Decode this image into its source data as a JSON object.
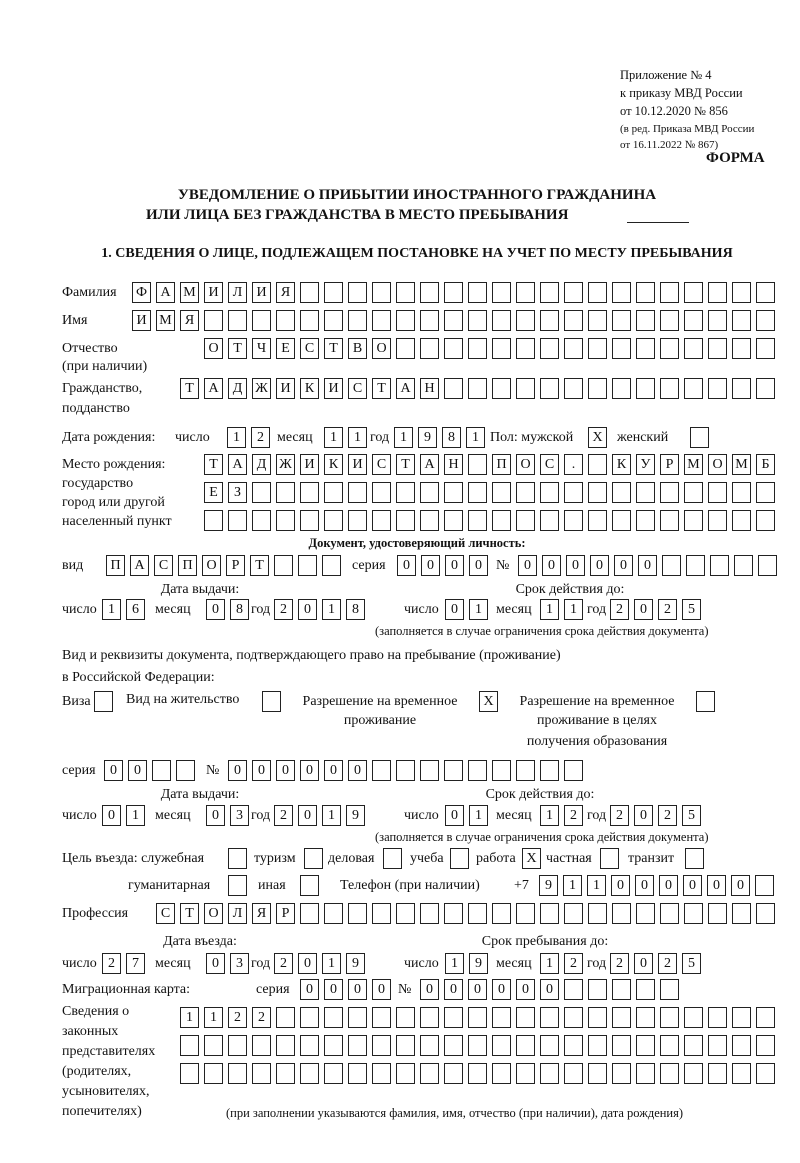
{
  "header": {
    "appendix": "Приложение № 4",
    "order_ref": "к приказу МВД России",
    "order_date": "от 10.12.2020 № 856",
    "edition_1": "(в ред. Приказа МВД России",
    "edition_2": "от 16.11.2022 № 867)",
    "form_label": "ФОРМА",
    "title_1": "УВЕДОМЛЕНИЕ О ПРИБЫТИИ ИНОСТРАННОГО ГРАЖДАНИНА",
    "title_2": "ИЛИ ЛИЦА БЕЗ ГРАЖДАНСТВА В МЕСТО ПРЕБЫВАНИЯ",
    "section_1": "1. СВЕДЕНИЯ О ЛИЦЕ, ПОДЛЕЖАЩЕМ ПОСТАНОВКЕ НА УЧЕТ ПО МЕСТУ ПРЕБЫВАНИЯ"
  },
  "person": {
    "surname_label": "Фамилия",
    "surname": "ФАМИЛИЯ",
    "name_label": "Имя",
    "name": "ИМЯ",
    "patronymic_label": "Отчество",
    "patronymic_note": "(при наличии)",
    "patronymic": "ОТЧЕСТВО",
    "citizenship_label": "Гражданство,",
    "citizenship_label_2": "подданство",
    "citizenship": "ТАДЖИКИСТАН",
    "birth_label": "Дата рождения:",
    "day_label": "число",
    "month_label": "месяц",
    "year_label": "год",
    "birth_day": "12",
    "birth_month": "11",
    "birth_year": "1981",
    "sex_label": "Пол: мужской",
    "female_label": "женский",
    "male_mark": "X",
    "female_mark": "",
    "birthplace_label_1": "Место рождения:",
    "birthplace_label_2": "государство",
    "birthplace_label_3": "город или другой",
    "birthplace_label_4": "населенный пункт",
    "birthplace_1": "ТАДЖИКИСТАН ПОС. КУРМОМБ",
    "birthplace_2": "ЕЗ",
    "birthplace_3": ""
  },
  "id_doc": {
    "heading": "Документ, удостоверяющий личность:",
    "kind_label": "вид",
    "kind": "ПАСПОРТ",
    "series_label": "серия",
    "series": "0000",
    "number_label": "№",
    "number": "000000",
    "issue_label": "Дата выдачи:",
    "issue_day": "16",
    "issue_month": "08",
    "issue_year": "2018",
    "valid_label": "Срок действия до:",
    "valid_day": "01",
    "valid_month": "11",
    "valid_year": "2025",
    "valid_note": "(заполняется в случае ограничения срока действия документа)"
  },
  "stay_doc": {
    "intro_1": "Вид и реквизиты документа, подтверждающего право на пребывание (проживание)",
    "intro_2": "в Российской Федерации:",
    "visa_label": "Виза",
    "visa_mark": "",
    "rp_label": "Вид на жительство",
    "rp_mark": "",
    "trp_label_1": "Разрешение на временное",
    "trp_label_2": "проживание",
    "trp_mark": "X",
    "trpe_label_1": "Разрешение на временное",
    "trpe_label_2": "проживание в целях",
    "trpe_label_3": "получения образования",
    "trpe_mark": "",
    "series_label": "серия",
    "series": "00",
    "number_label": "№",
    "number": "000000",
    "issue_label": "Дата выдачи:",
    "issue_day": "01",
    "issue_month": "03",
    "issue_year": "2019",
    "valid_label": "Срок действия до:",
    "valid_day": "01",
    "valid_month": "12",
    "valid_year": "2025",
    "valid_note": "(заполняется в случае ограничения срока действия документа)"
  },
  "purpose": {
    "label": "Цель въезда: служебная",
    "service": "",
    "tourism_label": "туризм",
    "tourism": "",
    "business_label": "деловая",
    "business": "",
    "study_label": "учеба",
    "study": "",
    "work_label": "работа",
    "work": "X",
    "private_label": "частная",
    "private": "",
    "transit_label": "транзит",
    "transit": "",
    "humanitarian_label": "гуманитарная",
    "humanitarian": "",
    "other_label": "иная",
    "other": "",
    "phone_label": "Телефон (при наличии)",
    "phone_prefix": "+7",
    "phone": "911000000"
  },
  "profession": {
    "label": "Профессия",
    "value": "СТОЛЯР"
  },
  "entry": {
    "entry_label": "Дата въезда:",
    "entry_day": "27",
    "entry_month": "03",
    "entry_year": "2019",
    "stay_label": "Срок пребывания до:",
    "stay_day": "19",
    "stay_month": "12",
    "stay_year": "2025"
  },
  "migration_card": {
    "label": "Миграционная карта:",
    "series_label": "серия",
    "series": "0000",
    "number_label": "№",
    "number": "000000"
  },
  "representatives": {
    "label_1": "Сведения о",
    "label_2": "законных",
    "label_3": "представителях",
    "label_4": "(родителях,",
    "label_5": "усыновителях,",
    "label_6": "попечителях)",
    "row_1": "1122",
    "row_2": "",
    "row_3": "",
    "note": "(при заполнении указываются фамилия, имя, отчество (при наличии), дата рождения)"
  }
}
